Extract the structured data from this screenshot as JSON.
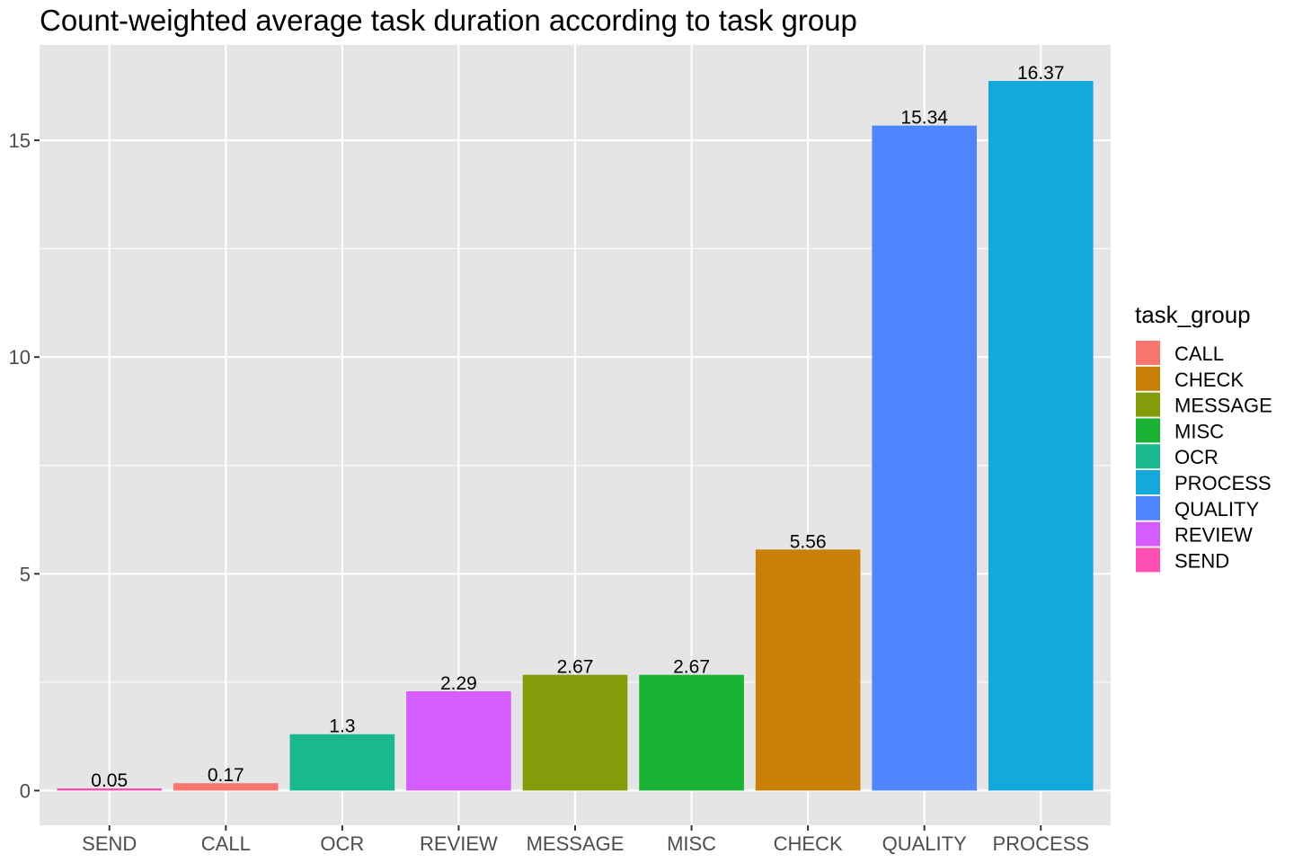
{
  "chart_data": {
    "type": "bar",
    "title": "Count-weighted average task duration according to task group",
    "xlabel": "",
    "ylabel": "",
    "categories": [
      "SEND",
      "CALL",
      "OCR",
      "REVIEW",
      "MESSAGE",
      "MISC",
      "CHECK",
      "QUALITY",
      "PROCESS"
    ],
    "values": [
      0.05,
      0.17,
      1.3,
      2.29,
      2.67,
      2.67,
      5.56,
      15.34,
      16.37
    ],
    "value_labels": [
      "0.05",
      "0.17",
      "1.3",
      "2.29",
      "2.67",
      "2.67",
      "5.56",
      "15.34",
      "16.37"
    ],
    "bar_colors": [
      "#FF4FB2",
      "#F8766D",
      "#19B88F",
      "#D55DFF",
      "#829D09",
      "#1AB233",
      "#C88106",
      "#4F86FF",
      "#14A8DC"
    ],
    "ylim": [
      -0.8,
      17.2
    ],
    "yticks": [
      0,
      5,
      10,
      15
    ],
    "ytick_labels": [
      "0",
      "5",
      "10",
      "15"
    ],
    "grid": true,
    "panel_color": "#E5E5E5",
    "legend": {
      "title": "task_group",
      "placement": "right",
      "entries": [
        {
          "label": "CALL",
          "color": "#F8766D"
        },
        {
          "label": "CHECK",
          "color": "#C88106"
        },
        {
          "label": "MESSAGE",
          "color": "#829D09"
        },
        {
          "label": "MISC",
          "color": "#1AB233"
        },
        {
          "label": "OCR",
          "color": "#19B88F"
        },
        {
          "label": "PROCESS",
          "color": "#14A8DC"
        },
        {
          "label": "QUALITY",
          "color": "#4F86FF"
        },
        {
          "label": "REVIEW",
          "color": "#D55DFF"
        },
        {
          "label": "SEND",
          "color": "#FF4FB2"
        }
      ]
    }
  }
}
